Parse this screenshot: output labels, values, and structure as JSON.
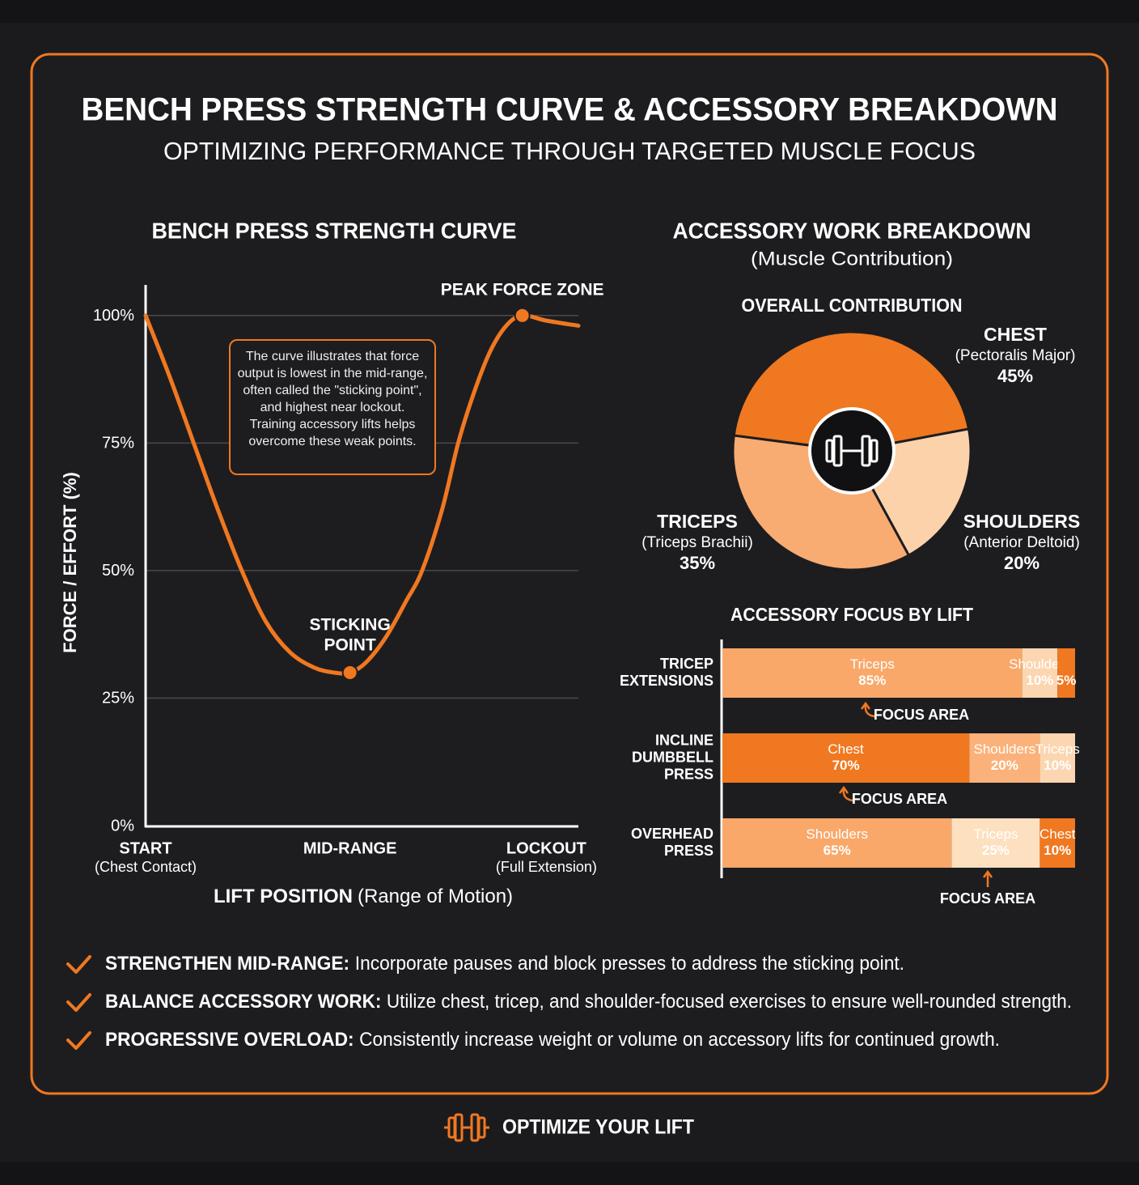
{
  "header": {
    "title": "BENCH PRESS STRENGTH CURVE & ACCESSORY BREAKDOWN",
    "subtitle": "OPTIMIZING PERFORMANCE THROUGH TARGETED MUSCLE FOCUS"
  },
  "chart_data": [
    {
      "type": "line",
      "title": "BENCH PRESS STRENGTH CURVE",
      "y_label": "FORCE / EFFORT (%)",
      "x_label": "LIFT POSITION",
      "x_label_note": "(Range of Motion)",
      "x": [
        0,
        6,
        12,
        18,
        24,
        30,
        36,
        42,
        47,
        51,
        55,
        60,
        65,
        69,
        74,
        78,
        82,
        86,
        90,
        94,
        100,
        108
      ],
      "values": [
        100,
        88,
        75,
        62,
        50,
        40,
        34,
        31,
        30,
        30,
        32,
        37,
        44,
        50,
        62,
        75,
        85,
        93,
        98,
        100,
        99,
        98
      ],
      "color": "#f07820",
      "xlim": [
        0,
        108
      ],
      "ylim": [
        0,
        106
      ],
      "xticks": [
        {
          "value": 0,
          "label": "START",
          "note": "(Chest Contact)"
        },
        {
          "value": 51,
          "label": "MID-RANGE"
        },
        {
          "value": 100,
          "label": "LOCKOUT",
          "note": "(Full Extension)"
        }
      ],
      "yticks": [
        {
          "value": 0,
          "label": "0%"
        },
        {
          "value": 25,
          "label": "25%"
        },
        {
          "value": 50,
          "label": "50%"
        },
        {
          "value": 75,
          "label": "75%"
        },
        {
          "value": 100,
          "label": "100%"
        }
      ],
      "grid": true,
      "annotations": [
        {
          "lines": [
            "PEAK FORCE ZONE"
          ],
          "x": 94,
          "y": 100
        },
        {
          "lines": [
            "STICKING",
            "POINT"
          ],
          "x": 51,
          "y": 30
        }
      ],
      "note": "The curve illustrates that force output is lowest in the mid-range, often called the \"sticking point\", and highest near lockout. Training accessory lifts helps overcome these weak points."
    },
    {
      "type": "pie",
      "title": "ACCESSORY WORK BREAKDOWN",
      "subtitle": "(Muscle Contribution)",
      "chart_title": "OVERALL CONTRIBUTION",
      "categories": [
        "CHEST",
        "SHOULDERS",
        "TRICEPS"
      ],
      "notes": [
        "(Pectoralis Major)",
        "(Anterior Deltoid)",
        "(Triceps Brachii)"
      ],
      "values": [
        45,
        20,
        35
      ],
      "value_labels": [
        "45%",
        "20%",
        "35%"
      ],
      "colors": [
        "#f07820",
        "#fcd2aa",
        "#f8ac72"
      ]
    },
    {
      "type": "stacked-bar",
      "title": "ACCESSORY FOCUS BY LIFT",
      "xlim": [
        0,
        100
      ],
      "categories": [
        [
          "TRICEP",
          "EXTENSIONS"
        ],
        [
          "INCLINE",
          "DUMBBELL",
          "PRESS"
        ],
        [
          "OVERHEAD",
          "PRESS"
        ]
      ],
      "bars": [
        {
          "segments": [
            {
              "name": "Triceps",
              "value": 85,
              "value_label": "85%",
              "color": "#f9a86a"
            },
            {
              "name": "Shoulders",
              "value": 10,
              "value_label": "10%",
              "color": "#fcd6b0"
            },
            {
              "name": null,
              "value": 5,
              "value_label": "5%",
              "color": "#f07820"
            }
          ],
          "annotation": "FOCUS AREA"
        },
        {
          "segments": [
            {
              "name": "Chest",
              "value": 70,
              "value_label": "70%",
              "color": "#f07820"
            },
            {
              "name": "Shoulders",
              "value": 20,
              "value_label": "20%",
              "color": "#fbb27a"
            },
            {
              "name": "Triceps",
              "value": 10,
              "value_label": "10%",
              "color": "#fcd6b0"
            }
          ],
          "annotation": "FOCUS AREA"
        },
        {
          "segments": [
            {
              "name": "Shoulders",
              "value": 65,
              "value_label": "65%",
              "color": "#f9a86a"
            },
            {
              "name": "Triceps",
              "value": 25,
              "value_label": "25%",
              "color": "#fde0c0"
            },
            {
              "name": "Chest",
              "value": 10,
              "value_label": "10%",
              "color": "#f07820"
            }
          ],
          "annotation": "FOCUS AREA"
        }
      ]
    }
  ],
  "takeaways": [
    {
      "lead": "STRENGTHEN MID-RANGE:",
      "text": "Incorporate pauses and block presses to address the sticking point."
    },
    {
      "lead": "BALANCE ACCESSORY WORK:",
      "text": "Utilize chest, tricep, and shoulder-focused exercises to ensure well-rounded strength."
    },
    {
      "lead": "PROGRESSIVE OVERLOAD:",
      "text": "Consistently increase weight or volume on accessory lifts for continued growth."
    }
  ],
  "footer": {
    "text": "OPTIMIZE YOUR LIFT"
  }
}
